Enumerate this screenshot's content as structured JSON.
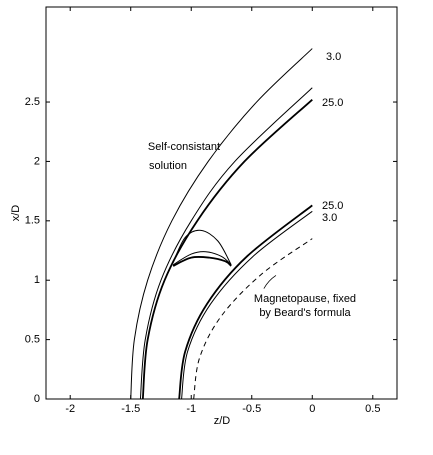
{
  "chart_data": {
    "type": "line",
    "xlabel": "z/D",
    "ylabel": "x/D",
    "xlim": [
      -2.2,
      0.7
    ],
    "ylim": [
      0,
      3.3
    ],
    "xticks": [
      -2,
      -1.5,
      -1,
      -0.5,
      0,
      0.5
    ],
    "yticks": [
      0,
      0.5,
      1,
      1.5,
      2,
      2.5
    ],
    "series": [
      {
        "color": "#000",
        "width": 1,
        "x": [
          -1.5,
          -1.47,
          -1.36,
          -1.16,
          -0.86,
          -0.46,
          0
        ],
        "values": [
          0,
          0.5,
          1,
          1.5,
          2,
          2.5,
          2.95
        ]
      },
      {
        "color": "#000",
        "width": 1,
        "x": [
          -1.42,
          -1.38,
          -1.25,
          -1.0,
          -0.64,
          0
        ],
        "values": [
          0,
          0.5,
          1,
          1.5,
          2,
          2.62
        ]
      },
      {
        "color": "#000",
        "width": 1.8,
        "x": [
          -1.4,
          -1.36,
          -1.22,
          -0.95,
          -0.56,
          0
        ],
        "values": [
          0,
          0.5,
          1,
          1.5,
          2,
          2.52
        ]
      },
      {
        "color": "#000",
        "width": 1.8,
        "x": [
          -1.1,
          -1.05,
          -0.87,
          -0.54,
          0
        ],
        "values": [
          0,
          0.4,
          0.8,
          1.2,
          1.63
        ]
      },
      {
        "color": "#000",
        "width": 1,
        "x": [
          -1.08,
          -1.03,
          -0.84,
          -0.49,
          0
        ],
        "values": [
          0,
          0.4,
          0.8,
          1.2,
          1.58
        ]
      },
      {
        "color": "#000",
        "width": 1,
        "dashed": true,
        "x": [
          -0.98,
          -0.93,
          -0.75,
          -0.42,
          0
        ],
        "values": [
          0,
          0.35,
          0.7,
          1.05,
          1.35
        ]
      },
      {
        "color": "#000",
        "width": 1,
        "x": [
          -1.15,
          -1.05,
          -0.92,
          -0.78,
          -0.67
        ],
        "values": [
          1.15,
          1.36,
          1.42,
          1.33,
          1.13
        ]
      },
      {
        "color": "#000",
        "width": 1,
        "x": [
          -1.15,
          -1.0,
          -0.88,
          -0.75,
          -0.67
        ],
        "values": [
          1.13,
          1.22,
          1.24,
          1.2,
          1.13
        ]
      },
      {
        "color": "#000",
        "width": 1.8,
        "x": [
          -1.15,
          -1.0,
          -0.85,
          -0.72,
          -0.67
        ],
        "values": [
          1.12,
          1.19,
          1.19,
          1.16,
          1.12
        ]
      }
    ],
    "annotations": [
      "3.0",
      "25.0",
      "25.0",
      "3.0",
      "Self-consistant",
      "solution",
      "Magnetopause, fixed",
      "by Beard's formula"
    ]
  }
}
